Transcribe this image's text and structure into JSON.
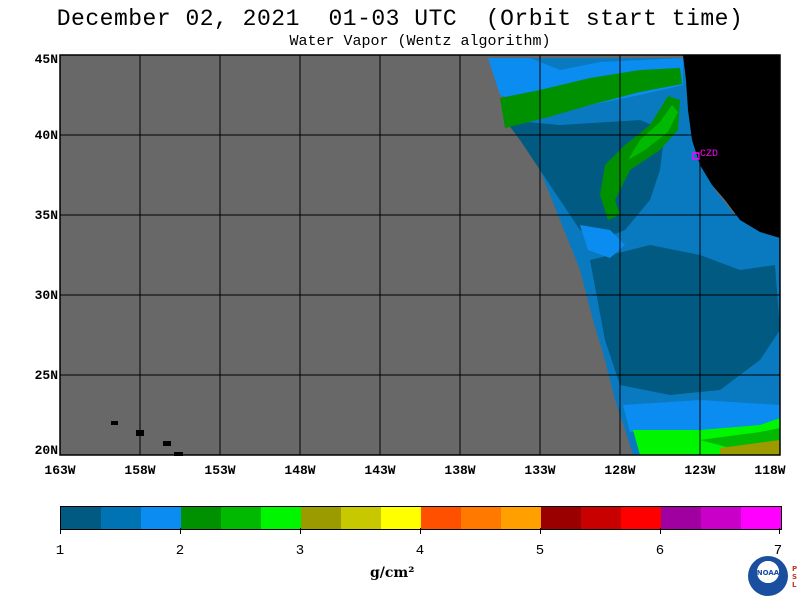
{
  "title": "December 02, 2021  01-03 UTC  (Orbit start time)",
  "subtitle": "Water Vapor (Wentz algorithm)",
  "lat_labels": [
    "45N",
    "40N",
    "35N",
    "30N",
    "25N",
    "20N"
  ],
  "lon_labels": [
    "163W",
    "158W",
    "153W",
    "148W",
    "143W",
    "138W",
    "133W",
    "128W",
    "123W",
    "118W"
  ],
  "station_label": "CZD",
  "colorbar": {
    "colors": [
      "#005a82",
      "#0073b4",
      "#0a8cf0",
      "#009100",
      "#00b900",
      "#00f500",
      "#9b9b00",
      "#c8c800",
      "#ffff00",
      "#ff5000",
      "#ff7800",
      "#ffa000",
      "#9b0000",
      "#c80000",
      "#ff0000",
      "#a000a0",
      "#c800c8",
      "#ff00ff"
    ],
    "tick_labels": [
      "1",
      "2",
      "3",
      "4",
      "5",
      "6",
      "7"
    ],
    "units": "g/cm²"
  },
  "logo_text": "NOAA",
  "side_logo_text": "PSL",
  "map_colors": {
    "no_data": "#686868",
    "land": "#000000",
    "grid": "#000000",
    "station": "#ff00ff"
  }
}
